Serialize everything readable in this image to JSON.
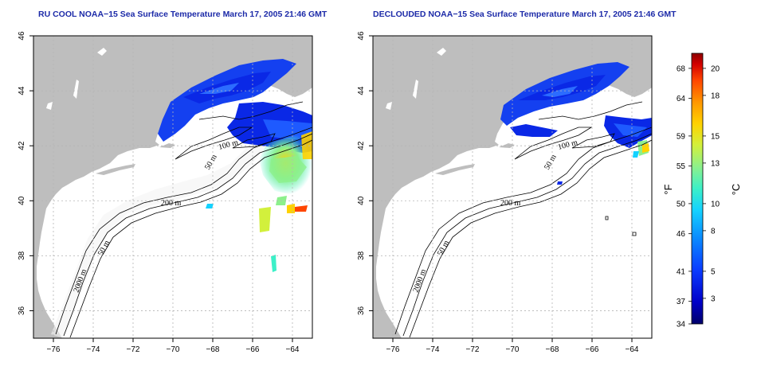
{
  "panels": [
    {
      "id": "rucool",
      "title": "RU COOL NOAA−15 Sea Surface Temperature March 17, 2005 21:46 GMT",
      "contour_labels": [
        "50 m",
        "200 m",
        "50 m",
        "2000 m",
        "100 m"
      ],
      "clouded": false
    },
    {
      "id": "declouded",
      "title": "DECLOUDED NOAA−15 Sea Surface Temperature March 17, 2005 21:46 GMT",
      "contour_labels": [
        "50 m",
        "200 m",
        "50 m",
        "2000 m",
        "100 m"
      ],
      "clouded": true
    }
  ],
  "axes": {
    "x_ticks": [
      "−76",
      "−74",
      "−72",
      "−70",
      "−68",
      "−66",
      "−64"
    ],
    "x_values": [
      -76,
      -74,
      -72,
      -70,
      -68,
      -66,
      -64
    ],
    "y_ticks": [
      "36",
      "38",
      "40",
      "42",
      "44",
      "46"
    ],
    "y_values": [
      36,
      38,
      40,
      42,
      44,
      46
    ],
    "xlim": [
      -77,
      -63
    ],
    "ylim": [
      35,
      46
    ]
  },
  "colorbar": {
    "fahrenheit_label": "°F",
    "celsius_label": "°C",
    "fahrenheit_ticks": [
      "68",
      "64",
      "59",
      "55",
      "50",
      "46",
      "41",
      "37",
      "34"
    ],
    "fahrenheit_values": [
      68,
      64,
      59,
      55,
      50,
      46,
      41,
      37,
      34
    ],
    "celsius_ticks": [
      "20",
      "18",
      "15",
      "13",
      "10",
      "8",
      "5",
      "3"
    ],
    "celsius_values": [
      20,
      18,
      15,
      13,
      10,
      8,
      5,
      3
    ],
    "range_f": [
      34,
      70
    ],
    "colors": [
      "#00006a",
      "#0000c8",
      "#0a3cff",
      "#0a8cff",
      "#14d2ff",
      "#3cf0c8",
      "#8cf08c",
      "#d2f03c",
      "#ffd200",
      "#ff9600",
      "#ff4600",
      "#d20000",
      "#8c0000"
    ]
  },
  "colors": {
    "land": "#bebebe",
    "ocean": "#ffffff",
    "title": "#1c2aa8",
    "grid": "#b4b4b4"
  }
}
